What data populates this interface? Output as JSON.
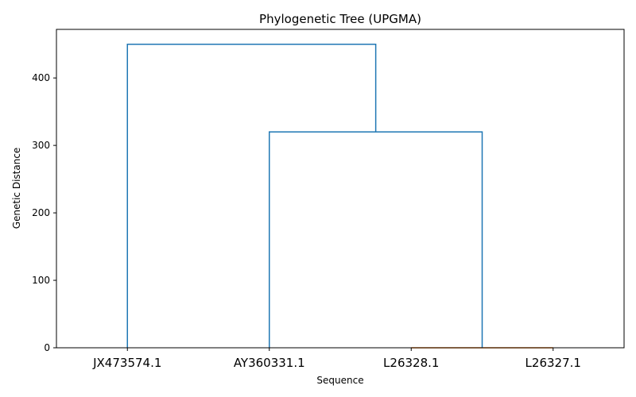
{
  "chart_data": {
    "type": "dendrogram",
    "title": "Phylogenetic Tree (UPGMA)",
    "xlabel": "Sequence",
    "ylabel": "Genetic Distance",
    "leaves": [
      "JX473574.1",
      "AY360331.1",
      "L26328.1",
      "L26327.1"
    ],
    "ylim": [
      0,
      472
    ],
    "yticks": [
      0,
      100,
      200,
      300,
      400
    ],
    "grid": false,
    "links": [
      {
        "left": "L26328.1",
        "right": "L26327.1",
        "height": 0,
        "color": "#ff7f0e"
      },
      {
        "left": "AY360331.1",
        "right": "cluster(L26328.1, L26327.1)",
        "height": 320,
        "color": "#1f77b4"
      },
      {
        "left": "JX473574.1",
        "right": "cluster(AY360331.1, L26328.1, L26327.1)",
        "height": 450,
        "color": "#1f77b4"
      }
    ]
  }
}
